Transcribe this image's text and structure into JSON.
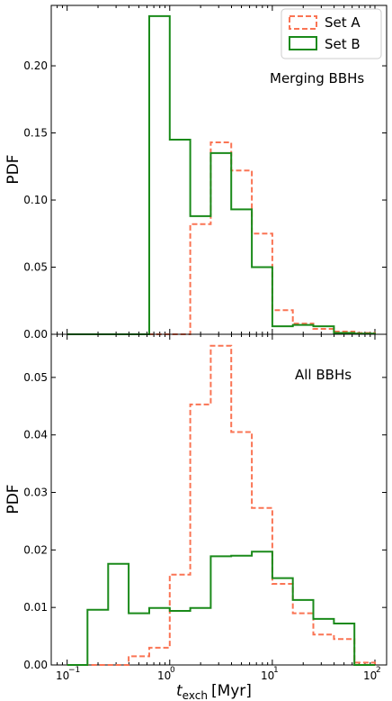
{
  "chart_data": [
    {
      "type": "step-histogram",
      "annotation": "Merging BBHs",
      "ylabel": "PDF",
      "xscale": "log",
      "xlim": [
        0.07,
        130
      ],
      "ylim": [
        0,
        0.245
      ],
      "yticks": [
        0.0,
        0.05,
        0.1,
        0.15,
        0.2
      ],
      "ytick_labels": [
        "0.00",
        "0.05",
        "0.10",
        "0.15",
        "0.20"
      ],
      "legend": {
        "position": "top-right",
        "entries": [
          "Set A",
          "Set B"
        ]
      },
      "bin_edges": [
        0.1,
        0.158,
        0.251,
        0.398,
        0.631,
        1.0,
        1.585,
        2.512,
        3.981,
        6.31,
        10.0,
        15.85,
        25.12,
        39.81,
        63.1,
        100.0
      ],
      "series": [
        {
          "name": "Set A",
          "color": "#fa7454",
          "style": "dashed",
          "values": [
            0,
            0,
            0,
            0,
            0,
            0,
            0.082,
            0.143,
            0.122,
            0.075,
            0.018,
            0.008,
            0.004,
            0.002,
            0.001
          ]
        },
        {
          "name": "Set B",
          "color": "#1a8a1a",
          "style": "solid",
          "values": [
            0,
            0,
            0,
            0,
            0.237,
            0.145,
            0.088,
            0.135,
            0.093,
            0.05,
            0.006,
            0.007,
            0.006,
            0.001,
            0.0005
          ]
        }
      ]
    },
    {
      "type": "step-histogram",
      "annotation": "All BBHs",
      "ylabel": "PDF",
      "xlabel": "t_exch [Myr]",
      "xscale": "log",
      "xlim": [
        0.07,
        130
      ],
      "ylim": [
        0,
        0.0575
      ],
      "xticks": [
        0.1,
        1,
        10,
        100
      ],
      "yticks": [
        0.0,
        0.01,
        0.02,
        0.03,
        0.04,
        0.05
      ],
      "ytick_labels": [
        "0.00",
        "0.01",
        "0.02",
        "0.03",
        "0.04",
        "0.05"
      ],
      "bin_edges": [
        0.1,
        0.158,
        0.251,
        0.398,
        0.631,
        1.0,
        1.585,
        2.512,
        3.981,
        6.31,
        10.0,
        15.85,
        25.12,
        39.81,
        63.1,
        100.0
      ],
      "series": [
        {
          "name": "Set A",
          "color": "#fa7454",
          "style": "dashed",
          "values": [
            0,
            0,
            0,
            0.0015,
            0.003,
            0.0157,
            0.0453,
            0.0555,
            0.0405,
            0.0273,
            0.0141,
            0.009,
            0.0053,
            0.0045,
            0.0004
          ]
        },
        {
          "name": "Set B",
          "color": "#1a8a1a",
          "style": "solid",
          "values": [
            0,
            0.0096,
            0.0176,
            0.009,
            0.0099,
            0.0094,
            0.0099,
            0.0189,
            0.019,
            0.0197,
            0.0151,
            0.0113,
            0.008,
            0.0072,
            0
          ]
        }
      ]
    }
  ],
  "xtick_labels": {
    "t1": "10",
    "e1": "−1",
    "t2": "10",
    "e2": "0",
    "t3": "10",
    "e3": "1",
    "t4": "10",
    "e4": "2"
  },
  "xlabel_parts": {
    "t": "t",
    "sub": "exch",
    "unit": "[Myr]"
  }
}
